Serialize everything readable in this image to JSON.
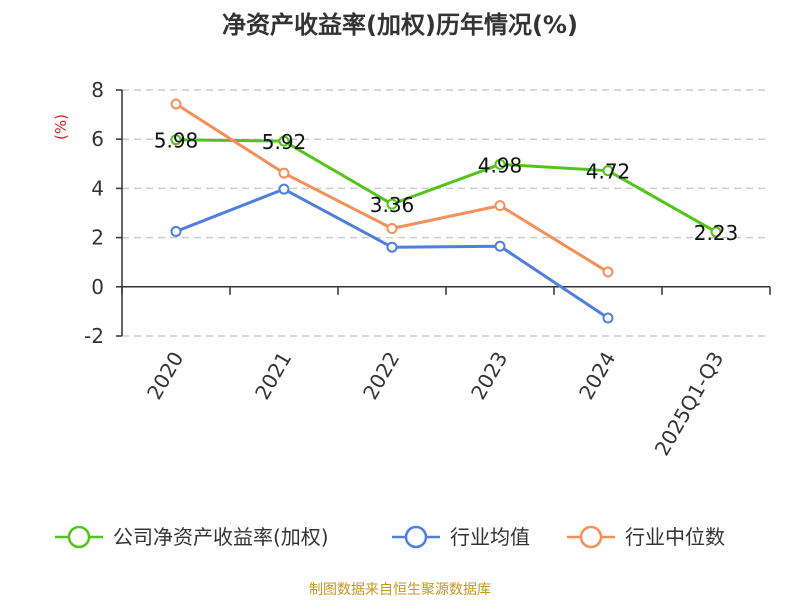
{
  "chart_data": {
    "type": "line",
    "title": "净资产收益率(加权)历年情况(%)",
    "ylabel": "(%)",
    "xlabel": "",
    "categories": [
      "2020",
      "2021",
      "2022",
      "2023",
      "2024",
      "2025Q1-Q3"
    ],
    "ylim": [
      -2,
      8
    ],
    "yticks": [
      8,
      6,
      4,
      2,
      0,
      -2
    ],
    "ytick_labels": [
      "8",
      "6",
      "4",
      "2",
      "0",
      "-2"
    ],
    "grid": true,
    "legend_position": "bottom",
    "series": [
      {
        "name": "公司净资产收益率(加权)",
        "color": "#52c41a",
        "values": [
          5.98,
          5.92,
          3.36,
          4.98,
          4.72,
          2.23
        ],
        "labels": [
          "5.98",
          "5.92",
          "3.36",
          "4.98",
          "4.72",
          "2.23"
        ]
      },
      {
        "name": "行业均值",
        "color": "#4f7fdc",
        "values": [
          2.25,
          3.97,
          1.61,
          1.65,
          -1.27,
          null
        ]
      },
      {
        "name": "行业中位数",
        "color": "#f5905a",
        "values": [
          7.43,
          4.62,
          2.37,
          3.3,
          0.6,
          null
        ]
      }
    ]
  },
  "source_text": "制图数据来自恒生聚源数据库"
}
